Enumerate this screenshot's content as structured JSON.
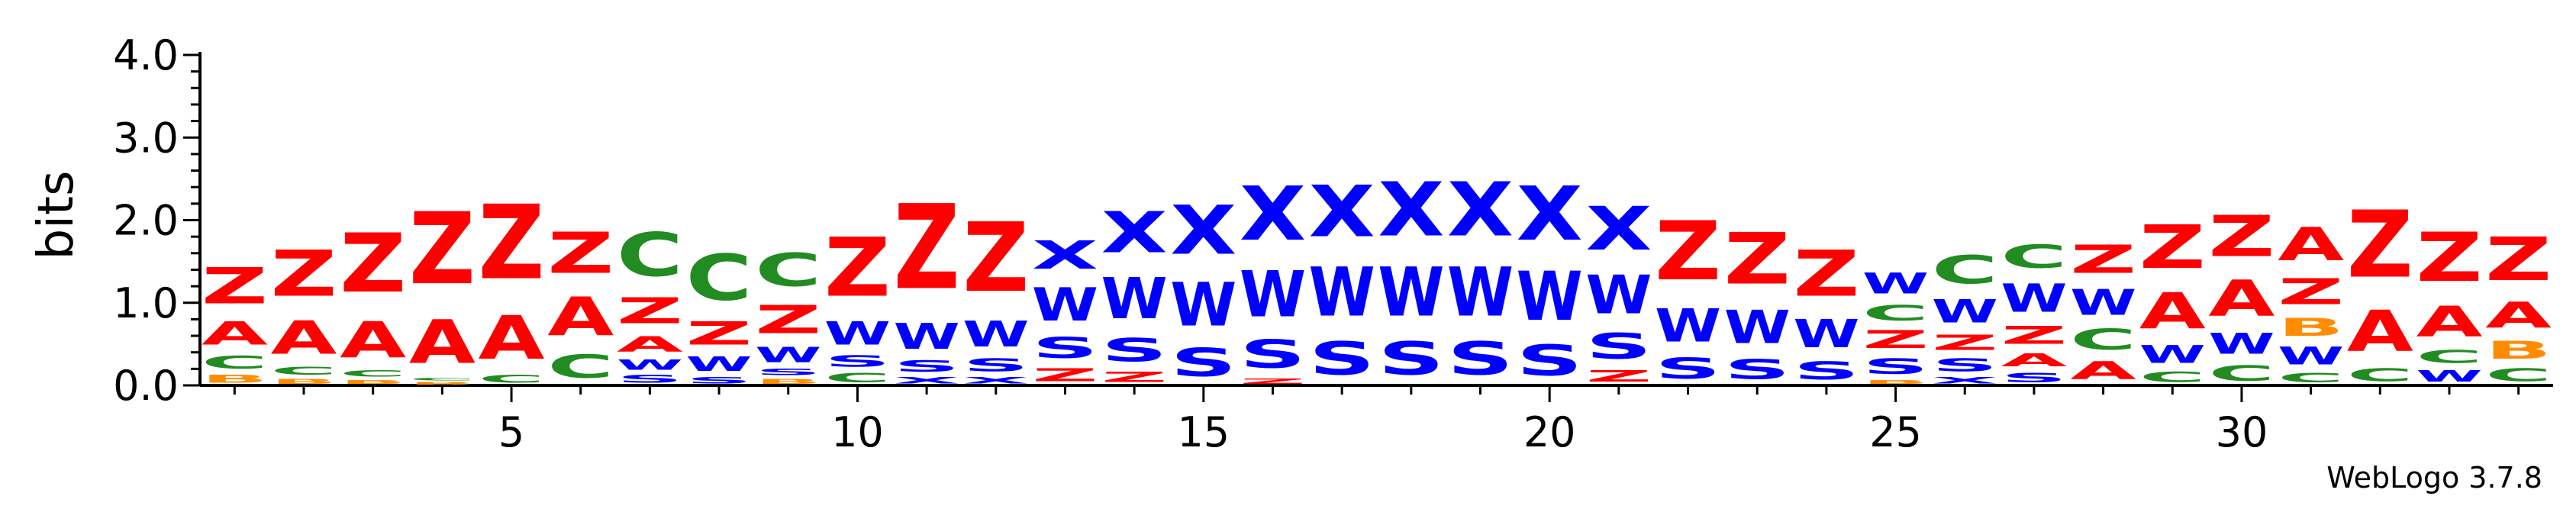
{
  "chart_data": {
    "type": "sequence-logo",
    "ylabel": "bits",
    "ylim": [
      0,
      4.0
    ],
    "yticks": [
      "0.0",
      "1.0",
      "2.0",
      "3.0",
      "4.0"
    ],
    "xticks": [
      {
        "position": 5,
        "label": "5"
      },
      {
        "position": 10,
        "label": "10"
      },
      {
        "position": 15,
        "label": "15"
      },
      {
        "position": 20,
        "label": "20"
      },
      {
        "position": 25,
        "label": "25"
      },
      {
        "position": 30,
        "label": "30"
      }
    ],
    "residue_colors": {
      "Z": "#ff0000",
      "A": "#ff0000",
      "X": "#0000ff",
      "W": "#0000ff",
      "S": "#0000ff",
      "C": "#228b22",
      "B": "#ff8c00"
    },
    "positions": [
      {
        "pos": 1,
        "stack": [
          {
            "letter": "B",
            "bits": 0.15
          },
          {
            "letter": "C",
            "bits": 0.25
          },
          {
            "letter": "A",
            "bits": 0.45
          },
          {
            "letter": "Z",
            "bits": 0.7
          }
        ]
      },
      {
        "pos": 2,
        "stack": [
          {
            "letter": "B",
            "bits": 0.1
          },
          {
            "letter": "C",
            "bits": 0.15
          },
          {
            "letter": "A",
            "bits": 0.65
          },
          {
            "letter": "Z",
            "bits": 0.9
          }
        ]
      },
      {
        "pos": 3,
        "stack": [
          {
            "letter": "B",
            "bits": 0.08
          },
          {
            "letter": "C",
            "bits": 0.12
          },
          {
            "letter": "A",
            "bits": 0.7
          },
          {
            "letter": "Z",
            "bits": 1.15
          }
        ]
      },
      {
        "pos": 4,
        "stack": [
          {
            "letter": "B",
            "bits": 0.05
          },
          {
            "letter": "C",
            "bits": 0.05
          },
          {
            "letter": "A",
            "bits": 0.85
          },
          {
            "letter": "Z",
            "bits": 1.4
          }
        ]
      },
      {
        "pos": 5,
        "stack": [
          {
            "letter": "C",
            "bits": 0.15
          },
          {
            "letter": "A",
            "bits": 0.85
          },
          {
            "letter": "Z",
            "bits": 1.45
          }
        ]
      },
      {
        "pos": 6,
        "stack": [
          {
            "letter": "C",
            "bits": 0.45
          },
          {
            "letter": "A",
            "bits": 0.75
          },
          {
            "letter": "Z",
            "bits": 0.8
          }
        ]
      },
      {
        "pos": 7,
        "stack": [
          {
            "letter": "S",
            "bits": 0.15
          },
          {
            "letter": "W",
            "bits": 0.2
          },
          {
            "letter": "A",
            "bits": 0.3
          },
          {
            "letter": "Z",
            "bits": 0.5
          },
          {
            "letter": "C",
            "bits": 0.85
          }
        ]
      },
      {
        "pos": 8,
        "stack": [
          {
            "letter": "S",
            "bits": 0.12
          },
          {
            "letter": "W",
            "bits": 0.28
          },
          {
            "letter": "Z",
            "bits": 0.45
          },
          {
            "letter": "C",
            "bits": 0.9
          }
        ]
      },
      {
        "pos": 9,
        "stack": [
          {
            "letter": "B",
            "bits": 0.1
          },
          {
            "letter": "S",
            "bits": 0.12
          },
          {
            "letter": "W",
            "bits": 0.3
          },
          {
            "letter": "Z",
            "bits": 0.55
          },
          {
            "letter": "C",
            "bits": 0.65
          }
        ]
      },
      {
        "pos": 10,
        "stack": [
          {
            "letter": "C",
            "bits": 0.18
          },
          {
            "letter": "S",
            "bits": 0.22
          },
          {
            "letter": "W",
            "bits": 0.45
          },
          {
            "letter": "Z",
            "bits": 1.15
          }
        ]
      },
      {
        "pos": 11,
        "stack": [
          {
            "letter": "X",
            "bits": 0.12
          },
          {
            "letter": "S",
            "bits": 0.22
          },
          {
            "letter": "W",
            "bits": 0.5
          },
          {
            "letter": "Z",
            "bits": 1.65
          }
        ]
      },
      {
        "pos": 12,
        "stack": [
          {
            "letter": "X",
            "bits": 0.12
          },
          {
            "letter": "S",
            "bits": 0.25
          },
          {
            "letter": "W",
            "bits": 0.5
          },
          {
            "letter": "Z",
            "bits": 1.35
          }
        ]
      },
      {
        "pos": 13,
        "stack": [
          {
            "letter": "Z",
            "bits": 0.25
          },
          {
            "letter": "S",
            "bits": 0.4
          },
          {
            "letter": "W",
            "bits": 0.65
          },
          {
            "letter": "X",
            "bits": 0.55
          }
        ]
      },
      {
        "pos": 14,
        "stack": [
          {
            "letter": "Z",
            "bits": 0.2
          },
          {
            "letter": "S",
            "bits": 0.45
          },
          {
            "letter": "W",
            "bits": 0.8
          },
          {
            "letter": "X",
            "bits": 0.8
          }
        ]
      },
      {
        "pos": 15,
        "stack": [
          {
            "letter": "S",
            "bits": 0.55
          },
          {
            "letter": "W",
            "bits": 0.85
          },
          {
            "letter": "X",
            "bits": 0.95
          }
        ]
      },
      {
        "pos": 16,
        "stack": [
          {
            "letter": "Z",
            "bits": 0.1
          },
          {
            "letter": "S",
            "bits": 0.55
          },
          {
            "letter": "W",
            "bits": 0.9
          },
          {
            "letter": "X",
            "bits": 1.05
          }
        ]
      },
      {
        "pos": 17,
        "stack": [
          {
            "letter": "S",
            "bits": 0.65
          },
          {
            "letter": "W",
            "bits": 0.95
          },
          {
            "letter": "X",
            "bits": 1.0
          }
        ]
      },
      {
        "pos": 18,
        "stack": [
          {
            "letter": "S",
            "bits": 0.65
          },
          {
            "letter": "W",
            "bits": 0.95
          },
          {
            "letter": "X",
            "bits": 1.05
          }
        ]
      },
      {
        "pos": 19,
        "stack": [
          {
            "letter": "S",
            "bits": 0.65
          },
          {
            "letter": "W",
            "bits": 0.95
          },
          {
            "letter": "X",
            "bits": 1.05
          }
        ]
      },
      {
        "pos": 20,
        "stack": [
          {
            "letter": "S",
            "bits": 0.6
          },
          {
            "letter": "W",
            "bits": 0.95
          },
          {
            "letter": "X",
            "bits": 1.05
          }
        ]
      },
      {
        "pos": 21,
        "stack": [
          {
            "letter": "Z",
            "bits": 0.22
          },
          {
            "letter": "S",
            "bits": 0.5
          },
          {
            "letter": "W",
            "bits": 0.75
          },
          {
            "letter": "X",
            "bits": 0.85
          }
        ]
      },
      {
        "pos": 22,
        "stack": [
          {
            "letter": "S",
            "bits": 0.4
          },
          {
            "letter": "W",
            "bits": 0.65
          },
          {
            "letter": "Z",
            "bits": 1.15
          }
        ]
      },
      {
        "pos": 23,
        "stack": [
          {
            "letter": "S",
            "bits": 0.38
          },
          {
            "letter": "W",
            "bits": 0.65
          },
          {
            "letter": "Z",
            "bits": 1.0
          }
        ]
      },
      {
        "pos": 24,
        "stack": [
          {
            "letter": "S",
            "bits": 0.35
          },
          {
            "letter": "W",
            "bits": 0.55
          },
          {
            "letter": "Z",
            "bits": 0.9
          }
        ]
      },
      {
        "pos": 25,
        "stack": [
          {
            "letter": "B",
            "bits": 0.08
          },
          {
            "letter": "S",
            "bits": 0.3
          },
          {
            "letter": "Z",
            "bits": 0.35
          },
          {
            "letter": "C",
            "bits": 0.3
          },
          {
            "letter": "W",
            "bits": 0.4
          }
        ]
      },
      {
        "pos": 26,
        "stack": [
          {
            "letter": "X",
            "bits": 0.12
          },
          {
            "letter": "S",
            "bits": 0.25
          },
          {
            "letter": "Z",
            "bits": 0.3
          },
          {
            "letter": "W",
            "bits": 0.45
          },
          {
            "letter": "C",
            "bits": 0.55
          }
        ]
      },
      {
        "pos": 27,
        "stack": [
          {
            "letter": "S",
            "bits": 0.18
          },
          {
            "letter": "A",
            "bits": 0.25
          },
          {
            "letter": "Z",
            "bits": 0.35
          },
          {
            "letter": "W",
            "bits": 0.55
          },
          {
            "letter": "C",
            "bits": 0.45
          }
        ]
      },
      {
        "pos": 28,
        "stack": [
          {
            "letter": "A",
            "bits": 0.35
          },
          {
            "letter": "C",
            "bits": 0.4
          },
          {
            "letter": "W",
            "bits": 0.5
          },
          {
            "letter": "Z",
            "bits": 0.55
          }
        ]
      },
      {
        "pos": 29,
        "stack": [
          {
            "letter": "C",
            "bits": 0.2
          },
          {
            "letter": "W",
            "bits": 0.35
          },
          {
            "letter": "A",
            "bits": 0.7
          },
          {
            "letter": "Z",
            "bits": 0.85
          }
        ]
      },
      {
        "pos": 30,
        "stack": [
          {
            "letter": "C",
            "bits": 0.3
          },
          {
            "letter": "W",
            "bits": 0.4
          },
          {
            "letter": "A",
            "bits": 0.7
          },
          {
            "letter": "Z",
            "bits": 0.8
          }
        ]
      },
      {
        "pos": 31,
        "stack": [
          {
            "letter": "C",
            "bits": 0.18
          },
          {
            "letter": "W",
            "bits": 0.35
          },
          {
            "letter": "B",
            "bits": 0.35
          },
          {
            "letter": "Z",
            "bits": 0.5
          },
          {
            "letter": "A",
            "bits": 0.65
          }
        ]
      },
      {
        "pos": 32,
        "stack": [
          {
            "letter": "C",
            "bits": 0.25
          },
          {
            "letter": "A",
            "bits": 0.8
          },
          {
            "letter": "Z",
            "bits": 1.3
          }
        ]
      },
      {
        "pos": 33,
        "stack": [
          {
            "letter": "W",
            "bits": 0.22
          },
          {
            "letter": "C",
            "bits": 0.25
          },
          {
            "letter": "A",
            "bits": 0.6
          },
          {
            "letter": "Z",
            "bits": 0.95
          }
        ]
      },
      {
        "pos": 34,
        "stack": [
          {
            "letter": "C",
            "bits": 0.25
          },
          {
            "letter": "B",
            "bits": 0.35
          },
          {
            "letter": "A",
            "bits": 0.5
          },
          {
            "letter": "Z",
            "bits": 0.85
          }
        ]
      }
    ]
  },
  "credit": "WebLogo 3.7.8"
}
